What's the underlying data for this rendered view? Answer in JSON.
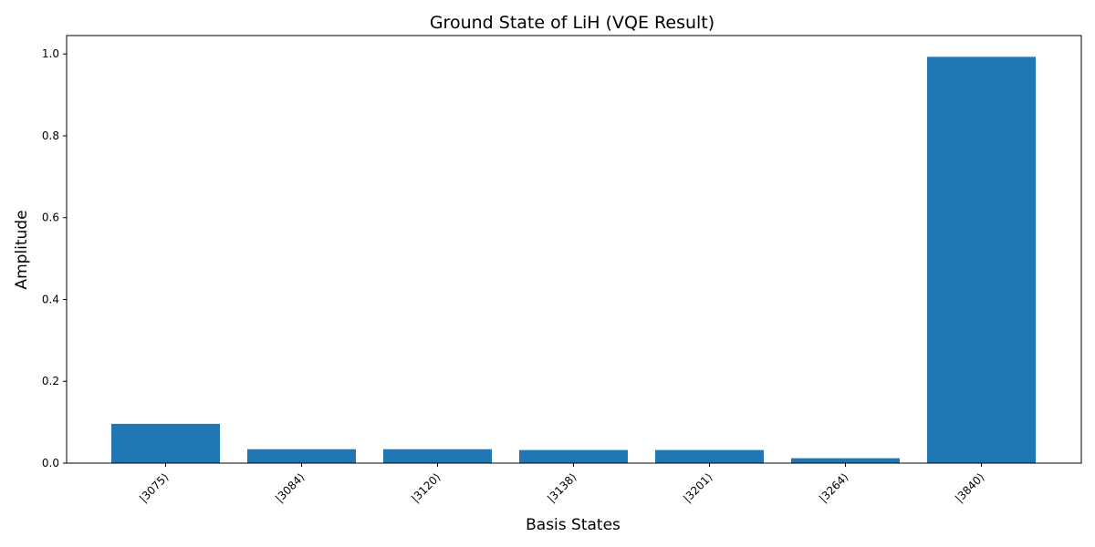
{
  "chart_data": {
    "type": "bar",
    "title": "Ground State of LiH (VQE Result)",
    "xlabel": "Basis States",
    "ylabel": "Amplitude",
    "categories": [
      "|3075⟩",
      "|3084⟩",
      "|3120⟩",
      "|3138⟩",
      "|3201⟩",
      "|3264⟩",
      "|3840⟩"
    ],
    "values": [
      0.096,
      0.034,
      0.034,
      0.032,
      0.032,
      0.012,
      0.993
    ],
    "ylim": [
      0,
      1.045
    ],
    "yticks": [
      "0.0",
      "0.2",
      "0.4",
      "0.6",
      "0.8",
      "1.0"
    ],
    "grid": false,
    "bar_color": "#1f77b4"
  }
}
